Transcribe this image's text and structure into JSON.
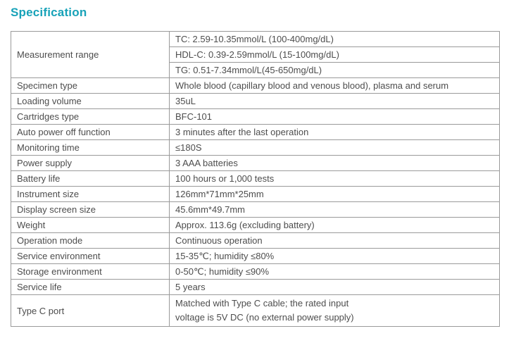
{
  "page": {
    "title": "Specification"
  },
  "colors": {
    "accent": "#17a2b8",
    "border": "#9a9a9a",
    "text": "#4d4d4d"
  },
  "spec_table": {
    "measurement": {
      "label": "Measurement range",
      "values": [
        "TC: 2.59-10.35mmol/L (100-400mg/dL)",
        "HDL-C: 0.39-2.59mmol/L (15-100mg/dL)",
        "TG: 0.51-7.34mmol/L(45-650mg/dL)"
      ]
    },
    "rows": [
      {
        "label": "Specimen type",
        "value": "Whole blood (capillary blood and venous blood), plasma and serum"
      },
      {
        "label": "Loading volume",
        "value": "35uL"
      },
      {
        "label": "Cartridges type",
        "value": "BFC-101"
      },
      {
        "label": "Auto power off function",
        "value": "3 minutes after the last operation"
      },
      {
        "label": "Monitoring time",
        "value": "≤180S"
      },
      {
        "label": "Power supply",
        "value": "3 AAA batteries"
      },
      {
        "label": "Battery life",
        "value": "100 hours or 1,000 tests"
      },
      {
        "label": "Instrument size",
        "value": "126mm*71mm*25mm"
      },
      {
        "label": "Display screen size",
        "value": "45.6mm*49.7mm"
      },
      {
        "label": "Weight",
        "value": "Approx. 113.6g (excluding battery)"
      },
      {
        "label": "Operation mode",
        "value": "Continuous operation"
      },
      {
        "label": "Service environment",
        "value": "15-35℃; humidity ≤80%"
      },
      {
        "label": "Storage environment",
        "value": "0-50℃; humidity ≤90%"
      },
      {
        "label": "Service life",
        "value": "5 years"
      }
    ],
    "type_c": {
      "label": "Type C port",
      "value_line1": "Matched with Type C cable; the rated input",
      "value_line2": "voltage is 5V DC (no external power supply)"
    }
  }
}
